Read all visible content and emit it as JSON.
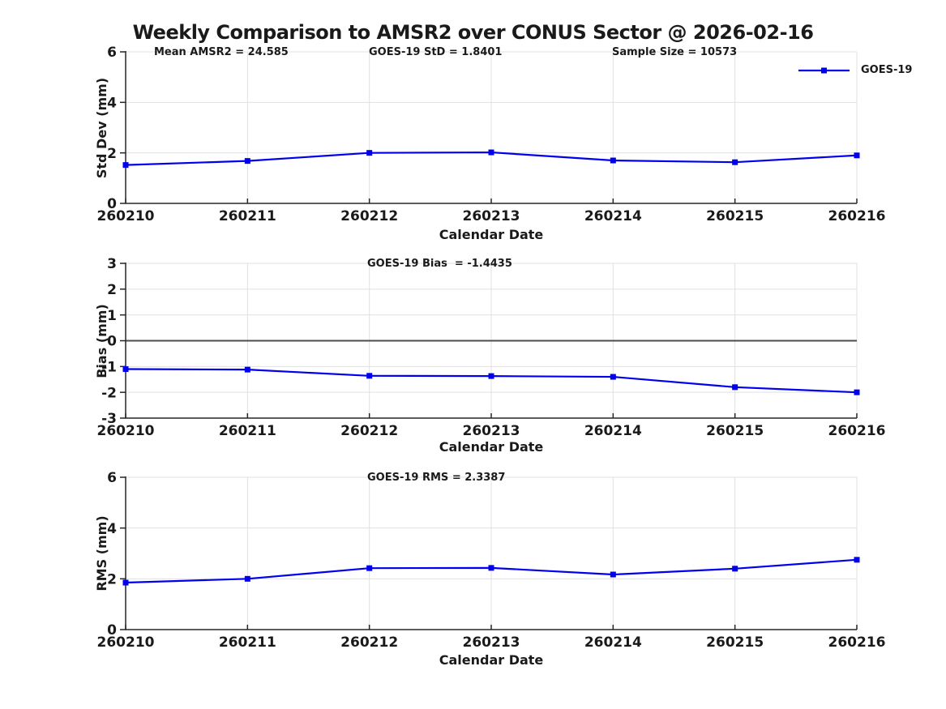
{
  "page_title": "Weekly Comparison to AMSR2 over CONUS Sector @ 2026-02-16",
  "colors": {
    "line": "#0000ee",
    "marker": "#0000ee",
    "grid": "#e0e0e0",
    "spine": "#262626",
    "zero_line": "#4d4d4d",
    "text": "#1a1a1a"
  },
  "legend": {
    "label": "GOES-19"
  },
  "chart_data": [
    {
      "type": "line",
      "name": "std-dev-panel",
      "annotations": [
        {
          "text": "Mean AMSR2 = 24.585"
        },
        {
          "text": "GOES-19 StD = 1.8401"
        },
        {
          "text": "Sample Size = 10573"
        }
      ],
      "categories": [
        "260210",
        "260211",
        "260212",
        "260213",
        "260214",
        "260215",
        "260216"
      ],
      "series": [
        {
          "name": "GOES-19",
          "values": [
            1.52,
            1.68,
            2.0,
            2.02,
            1.7,
            1.63,
            1.9
          ]
        }
      ],
      "xlabel": "Calendar Date",
      "ylabel": "Std Dev (mm)",
      "ylim": [
        0,
        6
      ],
      "yticks": [
        0,
        2,
        4,
        6
      ],
      "grid": true,
      "zero_line": false,
      "legend_position": "top-right-inside"
    },
    {
      "type": "line",
      "name": "bias-panel",
      "annotations": [
        {
          "text": "GOES-19 Bias  = -1.4435"
        }
      ],
      "categories": [
        "260210",
        "260211",
        "260212",
        "260213",
        "260214",
        "260215",
        "260216"
      ],
      "series": [
        {
          "name": "GOES-19",
          "values": [
            -1.1,
            -1.12,
            -1.36,
            -1.37,
            -1.4,
            -1.8,
            -2.0
          ]
        }
      ],
      "xlabel": "Calendar Date",
      "ylabel": "Bias (mm)",
      "ylim": [
        -3,
        3
      ],
      "yticks": [
        -3,
        -2,
        -1,
        0,
        1,
        2,
        3
      ],
      "grid": true,
      "zero_line": true,
      "legend_position": "none"
    },
    {
      "type": "line",
      "name": "rms-panel",
      "annotations": [
        {
          "text": "GOES-19 RMS = 2.3387"
        }
      ],
      "categories": [
        "260210",
        "260211",
        "260212",
        "260213",
        "260214",
        "260215",
        "260216"
      ],
      "series": [
        {
          "name": "GOES-19",
          "values": [
            1.85,
            2.0,
            2.42,
            2.43,
            2.17,
            2.4,
            2.75
          ]
        }
      ],
      "xlabel": "Calendar Date",
      "ylabel": "RMS (mm)",
      "ylim": [
        0,
        6
      ],
      "yticks": [
        0,
        2,
        4,
        6
      ],
      "grid": true,
      "zero_line": false,
      "legend_position": "none"
    }
  ]
}
